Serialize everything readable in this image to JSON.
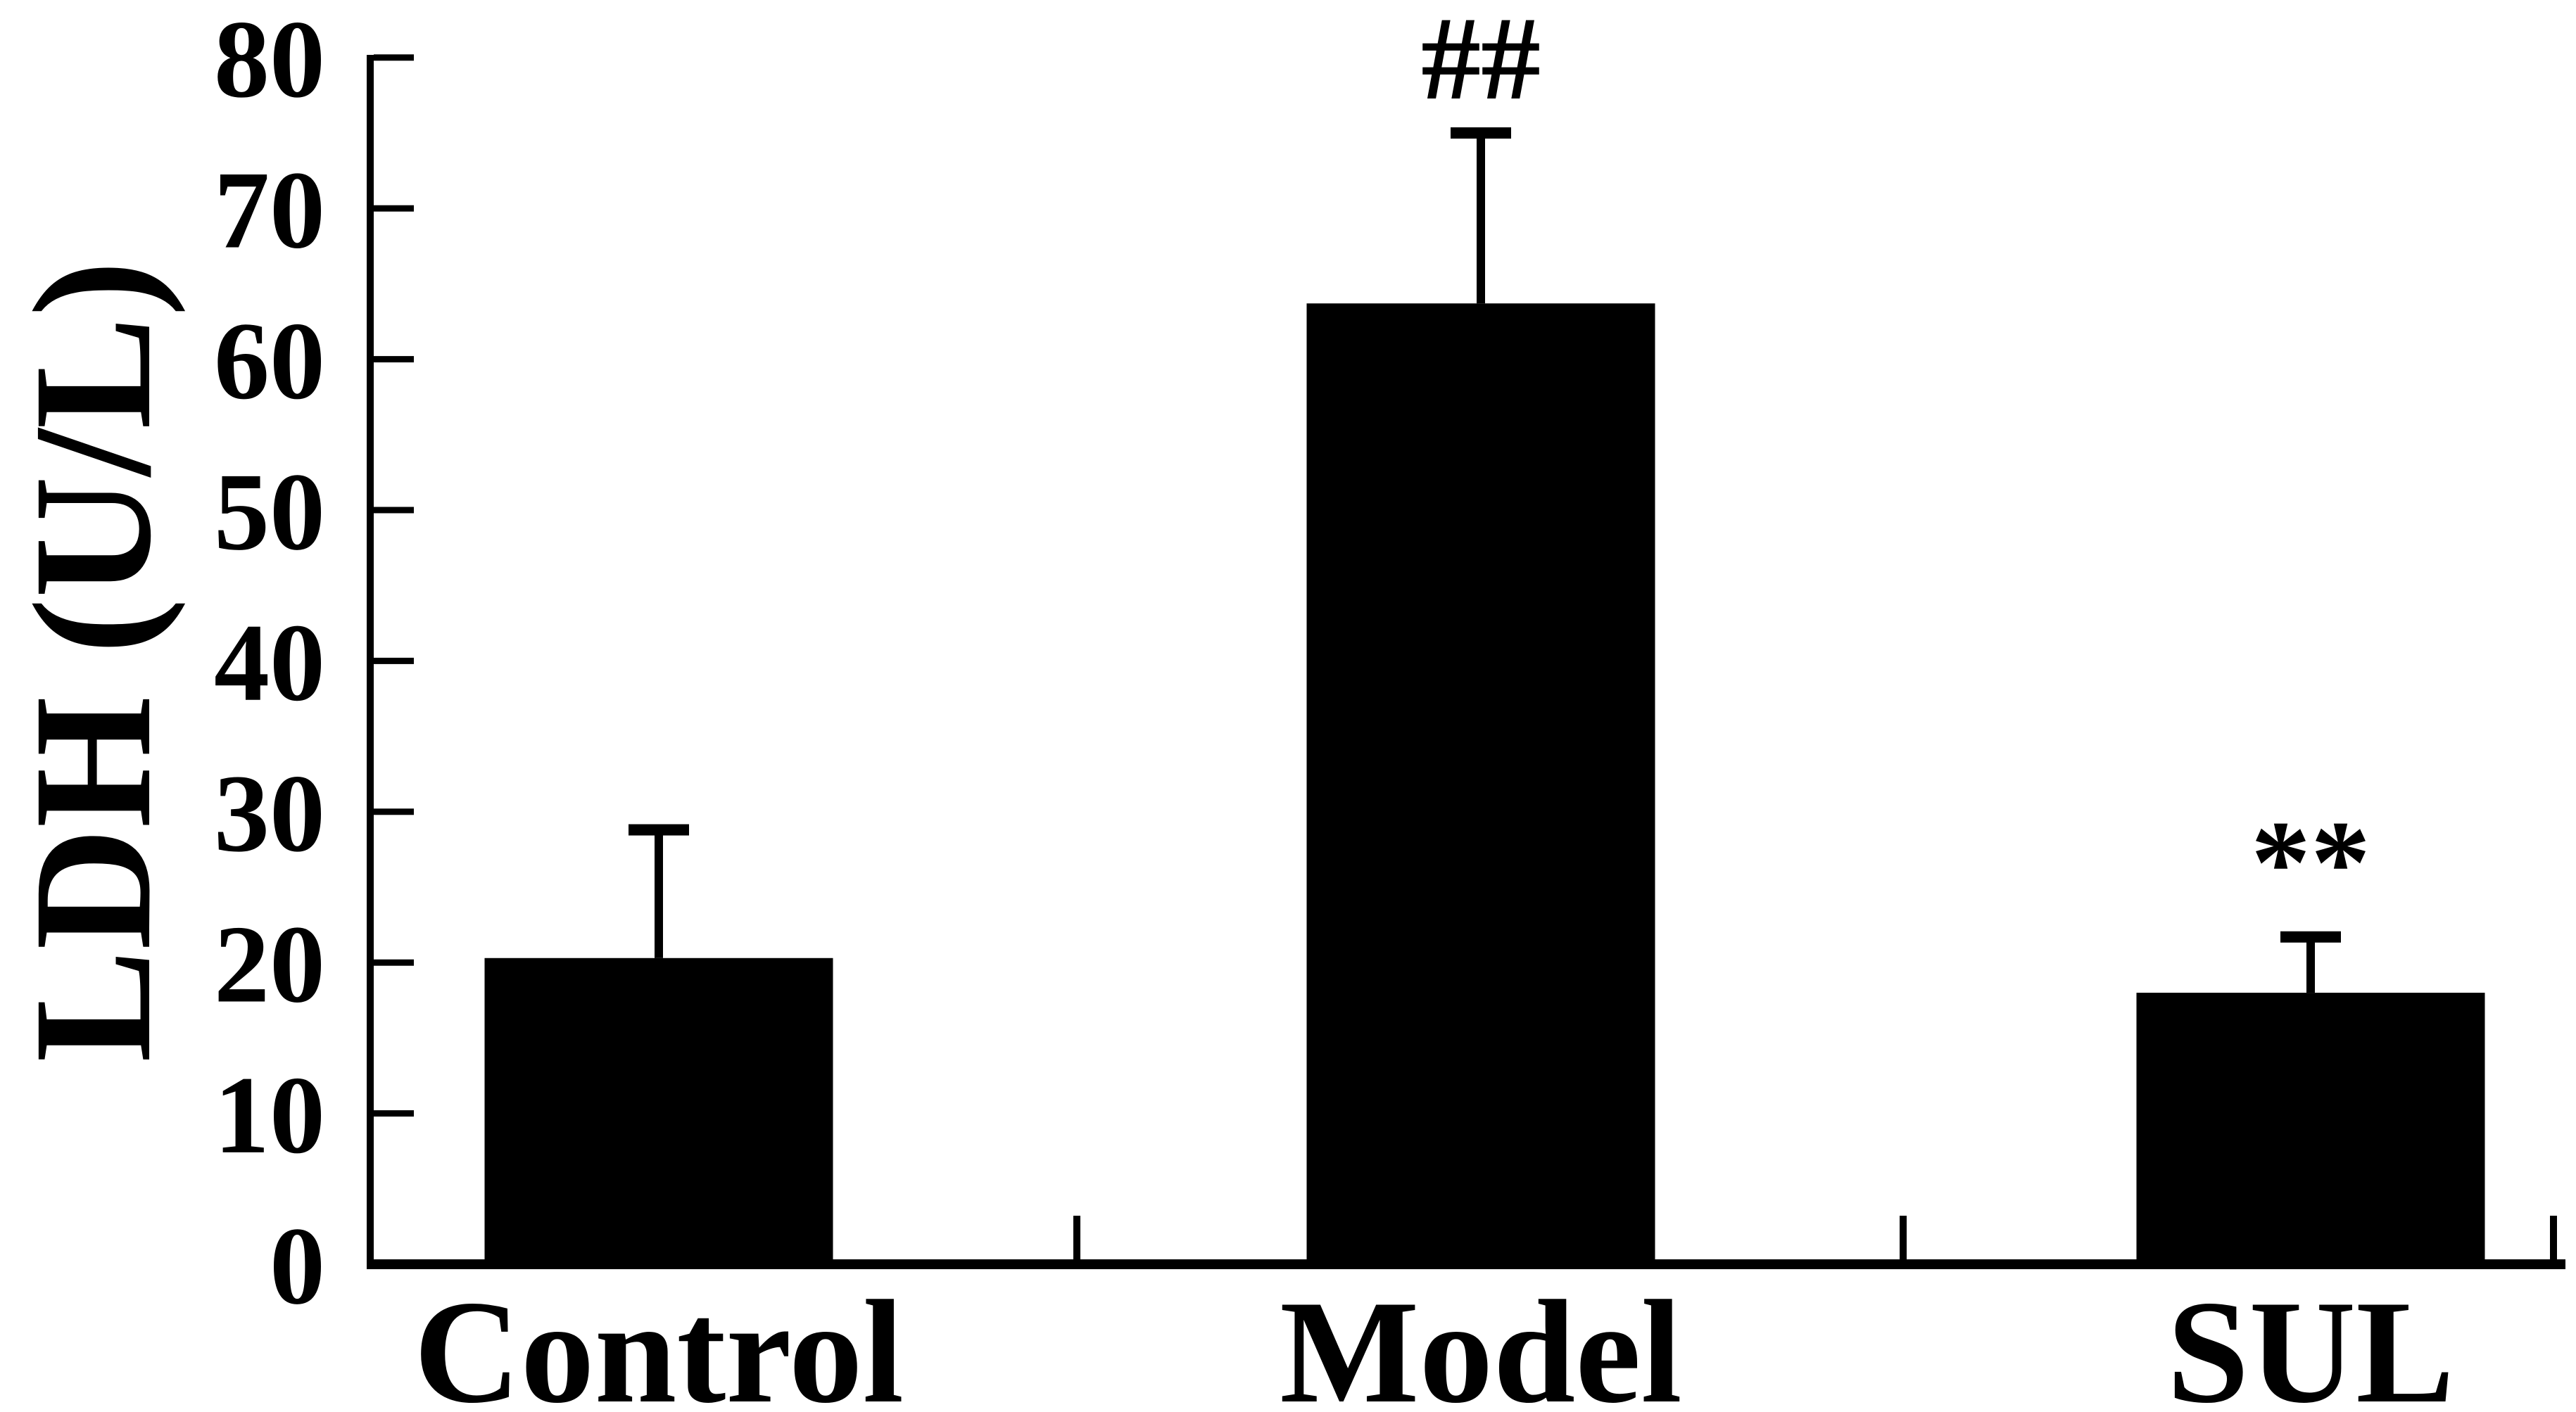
{
  "figure": {
    "background_color": "#ffffff",
    "ink_color": "#000000"
  },
  "chart_data": {
    "type": "bar",
    "title": "",
    "xlabel": "",
    "ylabel": "LDH (U/L)",
    "categories": [
      "Control",
      "Model",
      "SUL"
    ],
    "values": [
      20.3,
      63.7,
      18.0
    ],
    "errors_up": [
      8.5,
      11.3,
      3.7
    ],
    "error_bar_style": "upper T-cap only",
    "annotations": [
      "",
      "##",
      "**"
    ],
    "yticks": [
      0,
      10,
      20,
      30,
      40,
      50,
      60,
      70,
      80
    ],
    "ytick_labels": [
      "0",
      "10",
      "20",
      "30",
      "40",
      "50",
      "60",
      "70",
      "80"
    ],
    "ylim": [
      0,
      80
    ],
    "bar_color": "#000000",
    "bar_edge_color": "#000000",
    "grid": false,
    "legend_position": "none",
    "tick_direction": "in"
  }
}
